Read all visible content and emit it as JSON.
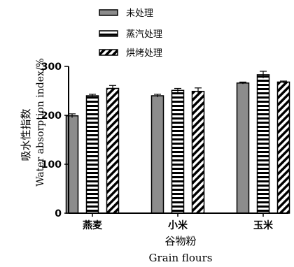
{
  "chart_data": {
    "type": "bar",
    "categories": [
      "燕麦",
      "小米",
      "玉米"
    ],
    "series": [
      {
        "name": "未处理",
        "values": [
          199,
          240,
          266
        ],
        "errors": [
          4,
          3,
          2
        ],
        "pattern": "solid"
      },
      {
        "name": "蒸汽处理",
        "values": [
          240,
          251,
          283
        ],
        "errors": [
          3,
          4,
          7
        ],
        "pattern": "horizontal-stripes"
      },
      {
        "name": "烘烤处理",
        "values": [
          255,
          249,
          268
        ],
        "errors": [
          6,
          7,
          2
        ],
        "pattern": "diagonal-stripes"
      }
    ],
    "ylabel_cn": "吸水性指数",
    "ylabel_en": "Water absorption index/%",
    "xlabel_cn": "谷物粉",
    "xlabel_en": "Grain flours",
    "ylim": [
      0,
      300
    ],
    "yticks": [
      0,
      100,
      200,
      300
    ],
    "legend_position": "top",
    "colors": {
      "solid_fill": "#8c8c8c",
      "stroke": "#000000",
      "background": "#ffffff"
    }
  }
}
